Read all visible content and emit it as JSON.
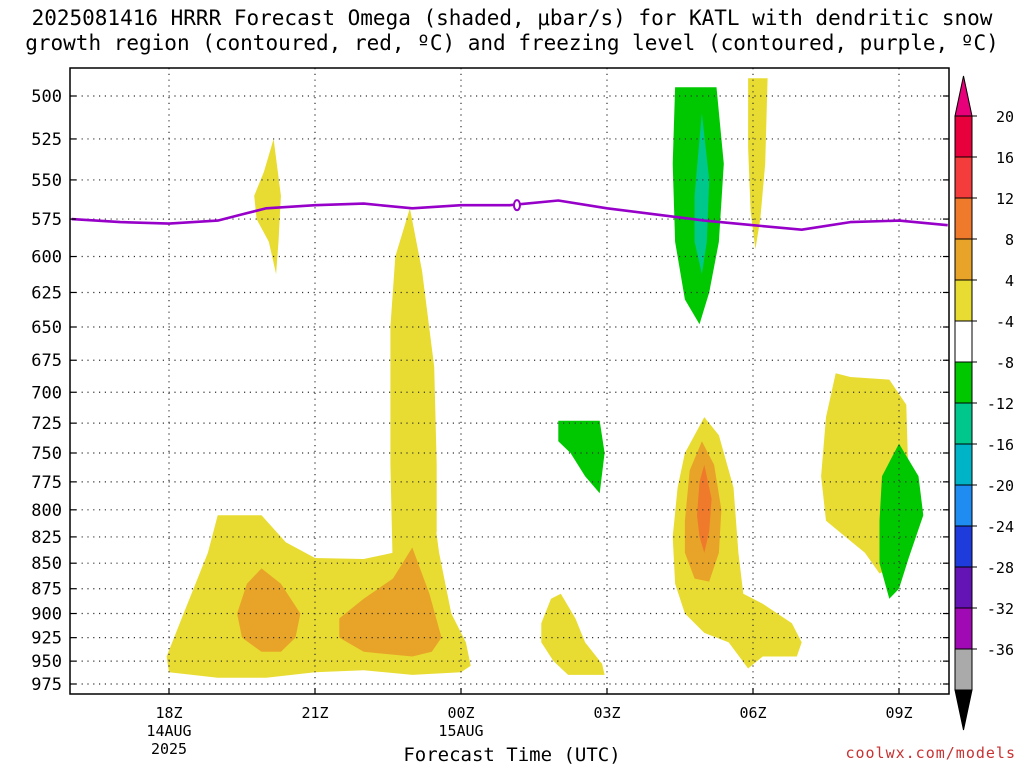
{
  "title_line1": "2025081416 HRRR Forecast Omega (shaded, μbar/s) for KATL with dendritic snow",
  "title_line2": "growth region (contoured, red, ºC) and freezing level (contoured, purple, ºC)",
  "credit": "coolwx.com/models",
  "chart_data": {
    "type": "time-height contour",
    "title": "2025081416 HRRR Forecast Omega (shaded, μbar/s) for KATL with dendritic snow growth region (contoured, red, ºC) and freezing level (contoured, purple, ºC)",
    "xlabel": "Forecast Time (UTC)",
    "ylabel": "",
    "y_axis_reversed": true,
    "y_ticks": [
      500,
      525,
      550,
      575,
      600,
      625,
      650,
      675,
      700,
      725,
      750,
      775,
      800,
      825,
      850,
      875,
      900,
      925,
      950,
      975
    ],
    "x_ticks": [
      {
        "hour": 18,
        "label": "18Z",
        "sub1": "14AUG",
        "sub2": "2025"
      },
      {
        "hour": 21,
        "label": "21Z",
        "sub1": "",
        "sub2": ""
      },
      {
        "hour": 24,
        "label": "00Z",
        "sub1": "15AUG",
        "sub2": ""
      },
      {
        "hour": 27,
        "label": "03Z",
        "sub1": "",
        "sub2": ""
      },
      {
        "hour": 30,
        "label": "06Z",
        "sub1": "",
        "sub2": ""
      },
      {
        "hour": 33,
        "label": "09Z",
        "sub1": "",
        "sub2": ""
      }
    ],
    "xlim": [
      16,
      34
    ],
    "grid": true,
    "colorbar": {
      "labels": [
        "20",
        "16",
        "12",
        "8",
        "4",
        "-4",
        "-8",
        "-12",
        "-16",
        "-20",
        "-24",
        "-28",
        "-32",
        "-36"
      ],
      "colors": [
        "#e8003c",
        "#f43c3c",
        "#f07a2c",
        "#e8a428",
        "#e8dc32",
        "#ffffff",
        "#00c800",
        "#00c88c",
        "#00b4c8",
        "#1e8cf0",
        "#1e3cdc",
        "#6414b4",
        "#a00ab4",
        "#aaaaaa"
      ],
      "top_triangle": "#e8007a",
      "bottom_triangle": "#000000"
    },
    "freezing_level": {
      "color": "#9600c8",
      "hours": [
        16,
        17,
        18,
        19,
        19.5,
        20,
        21,
        22,
        23,
        24,
        25,
        26,
        27,
        28,
        29,
        30,
        31,
        32,
        33,
        34
      ],
      "pressure": [
        575,
        577,
        578,
        576,
        572,
        568,
        566,
        565,
        568,
        566,
        566,
        563,
        568,
        572,
        576,
        579,
        582,
        577,
        576,
        579
      ]
    },
    "terrain": {
      "color": "#a0522d",
      "top_pressure": 990
    },
    "omega_regions": [
      {
        "name": "upward 4-8 near 20Z 525-610",
        "value": "4",
        "color": "#e8dc32"
      },
      {
        "name": "upward 4-8 centered 23Z 570-960",
        "value": "4",
        "color": "#e8dc32"
      },
      {
        "name": "upward 4-8 low-level 18Z-00Z",
        "value": "4",
        "color": "#e8dc32"
      },
      {
        "name": "upward 8-12 near 20Z 900 hPa",
        "value": "8",
        "color": "#e8a428"
      },
      {
        "name": "upward 8-12 near 22Z 900 hPa",
        "value": "8",
        "color": "#e8a428"
      },
      {
        "name": "upward 4-8 near 02Z 900-960",
        "value": "4",
        "color": "#e8dc32"
      },
      {
        "name": "upward 4-8 near 05Z-06Z 700-960",
        "value": "4",
        "color": "#e8dc32"
      },
      {
        "name": "upward 8-12 near 05Z 800 hPa",
        "value": "8",
        "color": "#e8a428"
      },
      {
        "name": "upward 12-16 near 05Z 780-820 hPa",
        "value": "12",
        "color": "#f07a2c"
      },
      {
        "name": "upward 4-8 near 08Z 700-870",
        "value": "4",
        "color": "#e8dc32"
      },
      {
        "name": "upward 4-8 near 06Z 490-590",
        "value": "4",
        "color": "#e8dc32"
      },
      {
        "name": "downward -4 to -8 near 05Z 490-650",
        "value": "-4",
        "color": "#00c800"
      },
      {
        "name": "downward -8 to -12 near 05Z 510-620",
        "value": "-8",
        "color": "#00c88c"
      },
      {
        "name": "downward -4 to -8 near 03Z 720-790",
        "value": "-4",
        "color": "#00c800"
      },
      {
        "name": "downward -4 to -8 near 09Z 740-890",
        "value": "-4",
        "color": "#00c800"
      }
    ]
  }
}
